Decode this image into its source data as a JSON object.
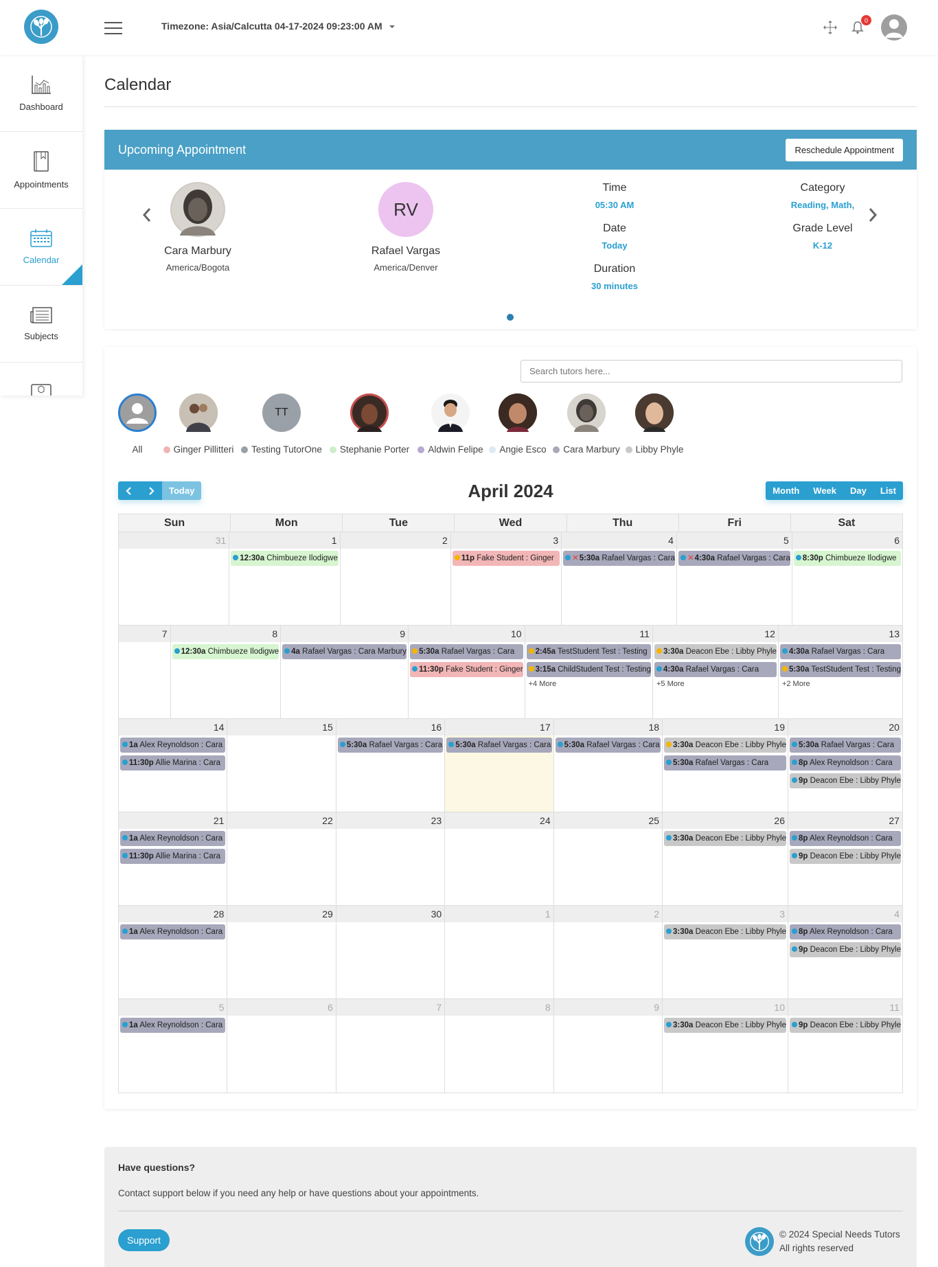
{
  "header": {
    "timezone_text": "Timezone: Asia/Calcutta 04-17-2024 09:23:00 AM",
    "notification_count": "0"
  },
  "sidebar": {
    "items": [
      {
        "label": "Dashboard",
        "icon": "chart-icon"
      },
      {
        "label": "Appointments",
        "icon": "book-icon"
      },
      {
        "label": "Calendar",
        "icon": "calendar-icon",
        "active": true
      },
      {
        "label": "Subjects",
        "icon": "newspaper-icon"
      }
    ]
  },
  "page": {
    "title": "Calendar"
  },
  "upcoming": {
    "title": "Upcoming Appointment",
    "reschedule_label": "Reschedule Appointment",
    "student": {
      "name": "Cara Marbury",
      "timezone": "America/Bogota"
    },
    "tutor": {
      "initials": "RV",
      "name": "Rafael Vargas",
      "timezone": "America/Denver"
    },
    "time_label": "Time",
    "time_value": "05:30 AM",
    "date_label": "Date",
    "date_value": "Today",
    "duration_label": "Duration",
    "duration_value": "30 minutes",
    "category_label": "Category",
    "category_value": "Reading, Math,",
    "grade_label": "Grade Level",
    "grade_value": "K-12"
  },
  "tutor_filter": {
    "search_placeholder": "Search tutors here...",
    "all_label": "All",
    "tutors": [
      {
        "name": "Ginger Pillitteri",
        "color": "#f0b3b3"
      },
      {
        "name": "Testing TutorOne",
        "color": "#9aa0a8",
        "initials": "TT"
      },
      {
        "name": "Stephanie Porter",
        "color": "#cdeecb"
      },
      {
        "name": "Aldwin Felipe",
        "color": "#b8a8d4"
      },
      {
        "name": "Angie Esco",
        "color": "#dde9f3"
      },
      {
        "name": "Cara Marbury",
        "color": "#a8a8b8"
      },
      {
        "name": "Libby Phyle",
        "color": "#c8c8c8"
      }
    ]
  },
  "calendar": {
    "title": "April 2024",
    "today_label": "Today",
    "views": [
      "Month",
      "Week",
      "Day",
      "List"
    ],
    "days_of_week": [
      "Sun",
      "Mon",
      "Tue",
      "Wed",
      "Thu",
      "Fri",
      "Sat"
    ],
    "weeks": [
      [
        {
          "n": "31",
          "other": true,
          "events": []
        },
        {
          "n": "1",
          "events": [
            {
              "t": "12:30a",
              "text": "Chimbueze Ilodigwe",
              "bg": "#d6f5d0",
              "dot": "#2a9fd0"
            }
          ]
        },
        {
          "n": "2",
          "events": []
        },
        {
          "n": "3",
          "events": [
            {
              "t": "11p",
              "text": "Fake Student : Ginger",
              "bg": "#f2b6b6",
              "dot": "#f5b400"
            }
          ]
        },
        {
          "n": "4",
          "events": [
            {
              "t": "5:30a",
              "text": "Rafael Vargas : Cara",
              "bg": "#a8a8bc",
              "dot": "#2a9fd0",
              "x": true
            }
          ]
        },
        {
          "n": "5",
          "events": [
            {
              "t": "4:30a",
              "text": "Rafael Vargas : Cara",
              "bg": "#a8a8bc",
              "dot": "#2a9fd0",
              "x": true
            }
          ]
        },
        {
          "n": "6",
          "events": [
            {
              "t": "8:30p",
              "text": "Chimbueze Ilodigwe",
              "bg": "#d6f5d0",
              "dot": "#2a9fd0"
            }
          ]
        }
      ],
      [
        {
          "n": "7",
          "events": []
        },
        {
          "n": "8",
          "events": [
            {
              "t": "12:30a",
              "text": "Chimbueze Ilodigwe",
              "bg": "#d6f5d0",
              "dot": "#2a9fd0"
            }
          ]
        },
        {
          "n": "9",
          "events": [
            {
              "t": "4a",
              "text": "Rafael Vargas : Cara Marbury",
              "bg": "#a8a8bc",
              "dot": "#2a9fd0"
            }
          ]
        },
        {
          "n": "10",
          "events": [
            {
              "t": "5:30a",
              "text": "Rafael Vargas : Cara",
              "bg": "#a8a8bc",
              "dot": "#f5b400"
            },
            {
              "t": "11:30p",
              "text": "Fake Student : Ginger",
              "bg": "#f2b6b6",
              "dot": "#2a9fd0"
            }
          ]
        },
        {
          "n": "11",
          "events": [
            {
              "t": "2:45a",
              "text": "TestStudent Test : Testing",
              "bg": "#a8a8bc",
              "dot": "#f5b400"
            },
            {
              "t": "3:15a",
              "text": "ChildStudent Test : Testing",
              "bg": "#a8a8bc",
              "dot": "#f5b400"
            }
          ],
          "more": "+4 More"
        },
        {
          "n": "12",
          "events": [
            {
              "t": "3:30a",
              "text": "Deacon Ebe : Libby Phyle",
              "bg": "#c8c8c8",
              "dot": "#f5b400"
            },
            {
              "t": "4:30a",
              "text": "Rafael Vargas : Cara",
              "bg": "#a8a8bc",
              "dot": "#2a9fd0"
            }
          ],
          "more": "+5 More"
        },
        {
          "n": "13",
          "events": [
            {
              "t": "4:30a",
              "text": "Rafael Vargas : Cara",
              "bg": "#a8a8bc",
              "dot": "#2a9fd0"
            },
            {
              "t": "5:30a",
              "text": "TestStudent Test : Testing",
              "bg": "#a8a8bc",
              "dot": "#f5b400"
            }
          ],
          "more": "+2 More"
        }
      ],
      [
        {
          "n": "14",
          "events": [
            {
              "t": "1a",
              "text": "Alex Reynoldson : Cara",
              "bg": "#a8a8bc",
              "dot": "#2a9fd0"
            },
            {
              "t": "11:30p",
              "text": "Allie Marina : Cara",
              "bg": "#a8a8bc",
              "dot": "#2a9fd0"
            }
          ]
        },
        {
          "n": "15",
          "events": []
        },
        {
          "n": "16",
          "events": [
            {
              "t": "5:30a",
              "text": "Rafael Vargas : Cara",
              "bg": "#a8a8bc",
              "dot": "#2a9fd0"
            }
          ]
        },
        {
          "n": "17",
          "today": true,
          "events": [
            {
              "t": "5:30a",
              "text": "Rafael Vargas : Cara",
              "bg": "#a8a8bc",
              "dot": "#2a9fd0"
            }
          ]
        },
        {
          "n": "18",
          "events": [
            {
              "t": "5:30a",
              "text": "Rafael Vargas : Cara",
              "bg": "#a8a8bc",
              "dot": "#2a9fd0"
            }
          ]
        },
        {
          "n": "19",
          "events": [
            {
              "t": "3:30a",
              "text": "Deacon Ebe : Libby Phyle",
              "bg": "#c8c8c8",
              "dot": "#f5b400"
            },
            {
              "t": "5:30a",
              "text": "Rafael Vargas : Cara",
              "bg": "#a8a8bc",
              "dot": "#2a9fd0"
            }
          ]
        },
        {
          "n": "20",
          "events": [
            {
              "t": "5:30a",
              "text": "Rafael Vargas : Cara",
              "bg": "#a8a8bc",
              "dot": "#2a9fd0"
            },
            {
              "t": "8p",
              "text": "Alex Reynoldson : Cara",
              "bg": "#a8a8bc",
              "dot": "#2a9fd0"
            },
            {
              "t": "9p",
              "text": "Deacon Ebe : Libby Phyle",
              "bg": "#c8c8c8",
              "dot": "#2a9fd0"
            }
          ]
        }
      ],
      [
        {
          "n": "21",
          "events": [
            {
              "t": "1a",
              "text": "Alex Reynoldson : Cara",
              "bg": "#a8a8bc",
              "dot": "#2a9fd0"
            },
            {
              "t": "11:30p",
              "text": "Allie Marina : Cara",
              "bg": "#a8a8bc",
              "dot": "#2a9fd0"
            }
          ]
        },
        {
          "n": "22",
          "events": []
        },
        {
          "n": "23",
          "events": []
        },
        {
          "n": "24",
          "events": []
        },
        {
          "n": "25",
          "events": []
        },
        {
          "n": "26",
          "events": [
            {
              "t": "3:30a",
              "text": "Deacon Ebe : Libby Phyle",
              "bg": "#c8c8c8",
              "dot": "#2a9fd0"
            }
          ]
        },
        {
          "n": "27",
          "events": [
            {
              "t": "8p",
              "text": "Alex Reynoldson : Cara",
              "bg": "#a8a8bc",
              "dot": "#2a9fd0"
            },
            {
              "t": "9p",
              "text": "Deacon Ebe : Libby Phyle",
              "bg": "#c8c8c8",
              "dot": "#2a9fd0"
            }
          ]
        }
      ],
      [
        {
          "n": "28",
          "events": [
            {
              "t": "1a",
              "text": "Alex Reynoldson : Cara",
              "bg": "#a8a8bc",
              "dot": "#2a9fd0"
            }
          ]
        },
        {
          "n": "29",
          "events": []
        },
        {
          "n": "30",
          "events": []
        },
        {
          "n": "1",
          "other": true,
          "events": []
        },
        {
          "n": "2",
          "other": true,
          "events": []
        },
        {
          "n": "3",
          "other": true,
          "events": [
            {
              "t": "3:30a",
              "text": "Deacon Ebe : Libby Phyle",
              "bg": "#c8c8c8",
              "dot": "#2a9fd0"
            }
          ]
        },
        {
          "n": "4",
          "other": true,
          "events": [
            {
              "t": "8p",
              "text": "Alex Reynoldson : Cara",
              "bg": "#a8a8bc",
              "dot": "#2a9fd0"
            },
            {
              "t": "9p",
              "text": "Deacon Ebe : Libby Phyle",
              "bg": "#c8c8c8",
              "dot": "#2a9fd0"
            }
          ]
        }
      ],
      [
        {
          "n": "5",
          "other": true,
          "events": [
            {
              "t": "1a",
              "text": "Alex Reynoldson : Cara",
              "bg": "#a8a8bc",
              "dot": "#2a9fd0"
            }
          ]
        },
        {
          "n": "6",
          "other": true,
          "events": []
        },
        {
          "n": "7",
          "other": true,
          "events": []
        },
        {
          "n": "8",
          "other": true,
          "events": []
        },
        {
          "n": "9",
          "other": true,
          "events": []
        },
        {
          "n": "10",
          "other": true,
          "events": [
            {
              "t": "3:30a",
              "text": "Deacon Ebe : Libby Phyle",
              "bg": "#c8c8c8",
              "dot": "#2a9fd0"
            }
          ]
        },
        {
          "n": "11",
          "other": true,
          "events": [
            {
              "t": "9p",
              "text": "Deacon Ebe : Libby Phyle",
              "bg": "#c8c8c8",
              "dot": "#2a9fd0"
            }
          ]
        }
      ]
    ]
  },
  "footer": {
    "question": "Have questions?",
    "text": "Contact support below if you need any help or have questions about your appointments.",
    "support_label": "Support",
    "copyright_line1": "© 2024 Special Needs Tutors",
    "copyright_line2": "All rights reserved"
  }
}
